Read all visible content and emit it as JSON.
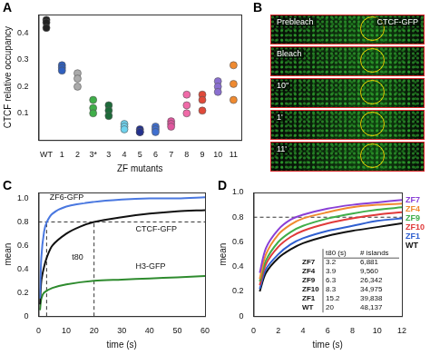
{
  "chart_data": [
    {
      "panel": "A",
      "type": "scatter",
      "y_label": "CTCF relative occupancy",
      "x_label": "ZF mutants",
      "categories": [
        "WT",
        "1",
        "2",
        "3*",
        "3",
        "4",
        "5",
        "6",
        "7",
        "8",
        "9",
        "10",
        "11"
      ],
      "values": [
        [
          0.45,
          0.44,
          0.42
        ],
        [
          0.28,
          0.27,
          0.26
        ],
        [
          0.25,
          0.23,
          0.2
        ],
        [
          0.15,
          0.12,
          0.1
        ],
        [
          0.13,
          0.11,
          0.09
        ],
        [
          0.06,
          0.05,
          0.04
        ],
        [
          0.04,
          0.03,
          0.03
        ],
        [
          0.05,
          0.04,
          0.03
        ],
        [
          0.07,
          0.06,
          0.05
        ],
        [
          0.17,
          0.13,
          0.1
        ],
        [
          0.17,
          0.15,
          0.11
        ],
        [
          0.22,
          0.2,
          0.18
        ],
        [
          0.28,
          0.21,
          0.15
        ]
      ],
      "colors": [
        "#222222",
        "#2f5fbf",
        "#aaaaaa",
        "#3fae49",
        "#1e6b3a",
        "#6fd3ee",
        "#23318f",
        "#3f6fd0",
        "#e0569e",
        "#f06aa8",
        "#e04a3a",
        "#8a6fd0",
        "#f08a30"
      ],
      "ylim": [
        0,
        0.47
      ],
      "yticks": [
        0.1,
        0.2,
        0.3,
        0.4
      ],
      "grid": false
    },
    {
      "panel": "C",
      "type": "line",
      "x_label": "time (s)",
      "y_label": "mean",
      "xlim": [
        0,
        60
      ],
      "xticks": [
        0,
        10,
        20,
        30,
        40,
        50,
        60
      ],
      "ylim": [
        0,
        1.05
      ],
      "yticks": [
        0,
        0.2,
        0.4,
        0.6,
        0.8,
        {
          "value": 1,
          "label": "1.0"
        }
      ],
      "grid": false,
      "series": [
        {
          "color": "#4a78e0",
          "x": [
            0.5,
            1,
            2,
            3,
            5,
            10,
            20,
            30,
            40,
            50,
            60
          ],
          "values": [
            0.15,
            0.5,
            0.72,
            0.8,
            0.87,
            0.93,
            0.97,
            0.99,
            1.0,
            1.0,
            1.01
          ]
        },
        {
          "color": "#111111",
          "x": [
            0.5,
            1,
            2,
            3,
            5,
            10,
            15,
            20,
            30,
            40,
            50,
            60
          ],
          "values": [
            0.1,
            0.3,
            0.42,
            0.5,
            0.6,
            0.7,
            0.76,
            0.8,
            0.84,
            0.87,
            0.89,
            0.9
          ]
        },
        {
          "color": "#2e8b2e",
          "x": [
            0.5,
            1,
            2,
            5,
            10,
            20,
            30,
            40,
            50,
            60
          ],
          "values": [
            0.05,
            0.15,
            0.2,
            0.24,
            0.27,
            0.3,
            0.31,
            0.32,
            0.33,
            0.34
          ]
        }
      ],
      "reference_lines": {
        "y": [
          0.8
        ],
        "x": [
          2.9,
          20
        ]
      },
      "annotations": [
        {
          "text": "ZF6-GFP",
          "x": 4,
          "y": 1.01
        },
        {
          "text": "CTCF-GFP",
          "x": 35,
          "y": 0.74
        },
        {
          "text": "H3-GFP",
          "x": 35,
          "y": 0.42
        },
        {
          "text": "t80",
          "x": 12,
          "y": 0.5
        }
      ]
    },
    {
      "panel": "D",
      "type": "line",
      "x_label": "time (s)",
      "y_label": "mean",
      "xlim": [
        0,
        12
      ],
      "xticks": [
        0,
        2,
        4,
        6,
        8,
        10,
        12
      ],
      "ylim": [
        0,
        1
      ],
      "yticks": [
        0,
        0.2,
        0.4,
        0.6,
        0.8,
        {
          "value": 1,
          "label": "1.0"
        }
      ],
      "grid": false,
      "series": [
        {
          "name": "ZF7",
          "color": "#8a3fd6",
          "x": [
            0.5,
            1,
            2,
            3,
            4,
            6,
            8,
            10,
            12
          ],
          "values": [
            0.35,
            0.55,
            0.7,
            0.78,
            0.82,
            0.87,
            0.9,
            0.92,
            0.94
          ]
        },
        {
          "name": "ZF4",
          "color": "#f08a30",
          "x": [
            0.5,
            1,
            2,
            3,
            4,
            6,
            8,
            10,
            12
          ],
          "values": [
            0.3,
            0.5,
            0.66,
            0.74,
            0.79,
            0.84,
            0.88,
            0.9,
            0.91
          ]
        },
        {
          "name": "ZF9",
          "color": "#3fae49",
          "x": [
            0.5,
            1,
            2,
            3,
            4,
            6,
            8,
            10,
            12
          ],
          "values": [
            0.28,
            0.45,
            0.6,
            0.68,
            0.73,
            0.79,
            0.83,
            0.86,
            0.88
          ]
        },
        {
          "name": "ZF10",
          "color": "#e03a3a",
          "x": [
            0.5,
            1,
            2,
            3,
            4,
            6,
            8,
            10,
            12
          ],
          "values": [
            0.25,
            0.42,
            0.56,
            0.64,
            0.69,
            0.75,
            0.79,
            0.82,
            0.84
          ]
        },
        {
          "name": "ZF1",
          "color": "#2f5fd0",
          "x": [
            0.5,
            1,
            2,
            3,
            4,
            6,
            8,
            10,
            12
          ],
          "values": [
            0.22,
            0.38,
            0.5,
            0.58,
            0.63,
            0.69,
            0.73,
            0.77,
            0.79
          ]
        },
        {
          "name": "WT",
          "color": "#111111",
          "x": [
            0.5,
            1,
            2,
            3,
            4,
            6,
            8,
            10,
            12
          ],
          "values": [
            0.2,
            0.35,
            0.47,
            0.54,
            0.59,
            0.65,
            0.69,
            0.72,
            0.75
          ]
        }
      ],
      "reference_lines": {
        "y": [
          0.8
        ],
        "x": []
      },
      "table": {
        "header": [
          "t80 (s)",
          "# islands"
        ],
        "rows": [
          [
            "ZF7",
            "3.2",
            "6,881"
          ],
          [
            "ZF4",
            "3.9",
            "9,560"
          ],
          [
            "ZF9",
            "6.3",
            "26,342"
          ],
          [
            "ZF10",
            "8.3",
            "34,975"
          ],
          [
            "ZF1",
            "15.2",
            "39,838"
          ],
          [
            "WT",
            "20",
            "48,137"
          ]
        ]
      }
    }
  ],
  "panel_b": {
    "panel": "B",
    "channel_label": "CTCF-GFP",
    "frames": [
      "Prebleach",
      "Bleach",
      "10''",
      "1'",
      "11'"
    ]
  }
}
